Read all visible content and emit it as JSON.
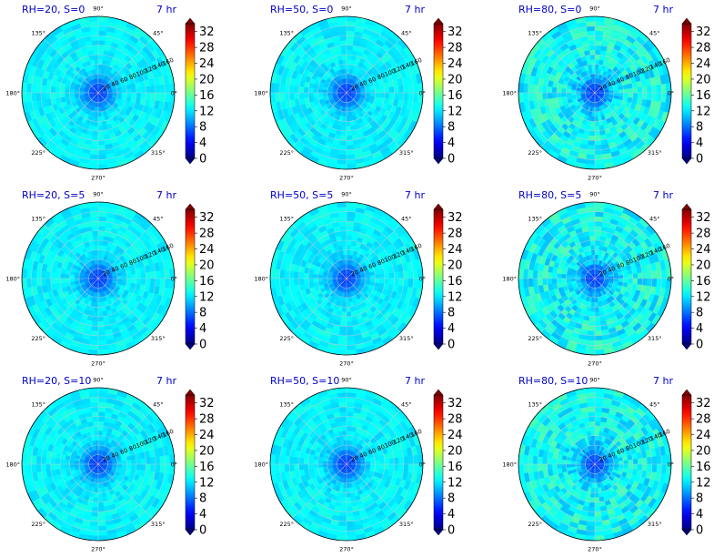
{
  "chart_data": {
    "type": "heatmap",
    "layout": "3x3 grid of polar heatmaps with colorbars",
    "colormap": "jet",
    "color_range": [
      0,
      34
    ],
    "angle_labels": [
      "90°",
      "45°",
      "0°",
      "315°",
      "270°",
      "225°",
      "180°",
      "135°"
    ],
    "radial_labels": [
      "20",
      "40",
      "60",
      "80",
      "100",
      "120",
      "140",
      "160"
    ],
    "radial_range": [
      0,
      160
    ],
    "colorbar_ticks": [
      "0",
      "4",
      "8",
      "12",
      "16",
      "20",
      "24",
      "28",
      "32"
    ],
    "panels": [
      {
        "title": "RH=20, S=0",
        "time": "7 hr",
        "center_value": 6,
        "field_mean": 12.5,
        "field_spread": 1.2
      },
      {
        "title": "RH=50, S=0",
        "time": "7 hr",
        "center_value": 6,
        "field_mean": 12.5,
        "field_spread": 1.2
      },
      {
        "title": "RH=80, S=0",
        "time": "7 hr",
        "center_value": 6,
        "field_mean": 13.0,
        "field_spread": 2.4
      },
      {
        "title": "RH=20, S=5",
        "time": "7 hr",
        "center_value": 6,
        "field_mean": 12.5,
        "field_spread": 1.2
      },
      {
        "title": "RH=50, S=5",
        "time": "7 hr",
        "center_value": 6,
        "field_mean": 12.5,
        "field_spread": 1.2
      },
      {
        "title": "RH=80, S=5",
        "time": "7 hr",
        "center_value": 6,
        "field_mean": 13.0,
        "field_spread": 2.4
      },
      {
        "title": "RH=20, S=10",
        "time": "7 hr",
        "center_value": 6,
        "field_mean": 12.5,
        "field_spread": 1.2
      },
      {
        "title": "RH=50, S=10",
        "time": "7 hr",
        "center_value": 6,
        "field_mean": 12.5,
        "field_spread": 1.2
      },
      {
        "title": "RH=80, S=10",
        "time": "7 hr",
        "center_value": 6,
        "field_mean": 13.0,
        "field_spread": 2.4
      }
    ]
  }
}
